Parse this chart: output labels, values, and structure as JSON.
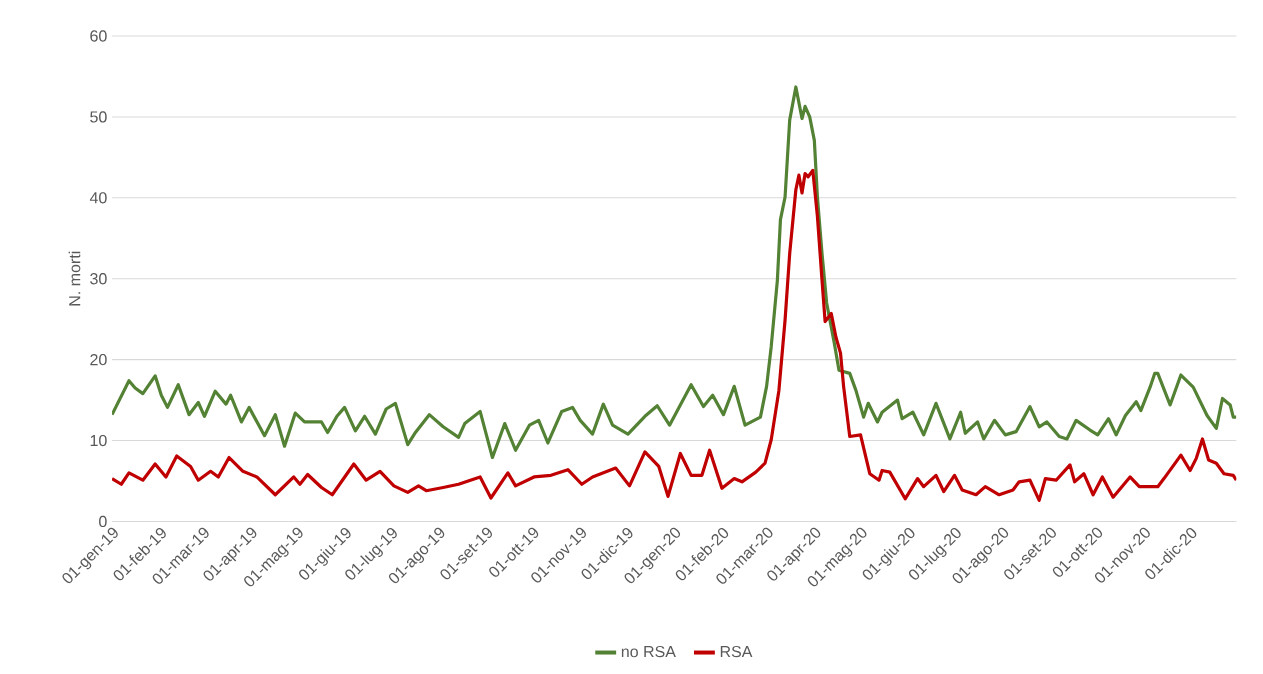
{
  "chart_data": {
    "type": "line",
    "ylabel": "N. morti",
    "xlim": [
      "2019-01-01",
      "2020-12-31"
    ],
    "xticks": [
      {
        "value": "2019-01-01",
        "label": "01-gen-19"
      },
      {
        "value": "2019-02-01",
        "label": "01-feb-19"
      },
      {
        "value": "2019-03-01",
        "label": "01-mar-19"
      },
      {
        "value": "2019-04-01",
        "label": "01-apr-19"
      },
      {
        "value": "2019-05-01",
        "label": "01-mag-19"
      },
      {
        "value": "2019-06-01",
        "label": "01-giu-19"
      },
      {
        "value": "2019-07-01",
        "label": "01-lug-19"
      },
      {
        "value": "2019-08-01",
        "label": "01-ago-19"
      },
      {
        "value": "2019-09-01",
        "label": "01-set-19"
      },
      {
        "value": "2019-10-01",
        "label": "01-ott-19"
      },
      {
        "value": "2019-11-01",
        "label": "01-nov-19"
      },
      {
        "value": "2019-12-01",
        "label": "01-dic-19"
      },
      {
        "value": "2020-01-01",
        "label": "01-gen-20"
      },
      {
        "value": "2020-02-01",
        "label": "01-feb-20"
      },
      {
        "value": "2020-03-01",
        "label": "01-mar-20"
      },
      {
        "value": "2020-04-01",
        "label": "01-apr-20"
      },
      {
        "value": "2020-05-01",
        "label": "01-mag-20"
      },
      {
        "value": "2020-06-01",
        "label": "01-giu-20"
      },
      {
        "value": "2020-07-01",
        "label": "01-lug-20"
      },
      {
        "value": "2020-08-01",
        "label": "01-ago-20"
      },
      {
        "value": "2020-09-01",
        "label": "01-set-20"
      },
      {
        "value": "2020-10-01",
        "label": "01-ott-20"
      },
      {
        "value": "2020-11-01",
        "label": "01-nov-20"
      },
      {
        "value": "2020-12-01",
        "label": "01-dic-20"
      }
    ],
    "ylim": [
      0,
      60
    ],
    "yticks": [
      0,
      10,
      20,
      30,
      40,
      50,
      60
    ],
    "grid": "y",
    "legend": "bottom",
    "marker": "none",
    "line_style": "solid",
    "series": [
      {
        "name": "no RSA",
        "color": "#548235",
        "x": [
          "2019-01-01",
          "2019-01-12",
          "2019-01-16",
          "2019-01-21",
          "2019-01-29",
          "2019-02-02",
          "2019-02-06",
          "2019-02-13",
          "2019-02-20",
          "2019-02-26",
          "2019-03-02",
          "2019-03-09",
          "2019-03-16",
          "2019-03-19",
          "2019-03-26",
          "2019-03-31",
          "2019-04-10",
          "2019-04-17",
          "2019-04-23",
          "2019-04-30",
          "2019-05-06",
          "2019-05-17",
          "2019-05-21",
          "2019-05-27",
          "2019-06-01",
          "2019-06-08",
          "2019-06-14",
          "2019-06-21",
          "2019-06-28",
          "2019-07-04",
          "2019-07-12",
          "2019-07-17",
          "2019-07-26",
          "2019-08-04",
          "2019-08-14",
          "2019-08-18",
          "2019-08-28",
          "2019-09-05",
          "2019-09-13",
          "2019-09-20",
          "2019-09-29",
          "2019-10-05",
          "2019-10-11",
          "2019-10-20",
          "2019-10-27",
          "2019-11-01",
          "2019-11-09",
          "2019-11-16",
          "2019-11-22",
          "2019-12-02",
          "2019-12-13",
          "2019-12-21",
          "2019-12-29",
          "2020-01-12",
          "2020-01-20",
          "2020-01-26",
          "2020-02-02",
          "2020-02-09",
          "2020-02-16",
          "2020-02-26",
          "2020-03-01",
          "2020-03-04",
          "2020-03-08",
          "2020-03-10",
          "2020-03-13",
          "2020-03-16",
          "2020-03-20",
          "2020-03-24",
          "2020-03-26",
          "2020-03-29",
          "2020-04-01",
          "2020-04-03",
          "2020-04-06",
          "2020-04-09",
          "2020-04-14",
          "2020-04-17",
          "2020-04-24",
          "2020-04-28",
          "2020-05-03",
          "2020-05-06",
          "2020-05-12",
          "2020-05-15",
          "2020-05-25",
          "2020-05-28",
          "2020-06-04",
          "2020-06-11",
          "2020-06-19",
          "2020-06-28",
          "2020-07-05",
          "2020-07-08",
          "2020-07-16",
          "2020-07-20",
          "2020-07-27",
          "2020-08-03",
          "2020-08-10",
          "2020-08-19",
          "2020-08-25",
          "2020-08-30",
          "2020-09-07",
          "2020-09-12",
          "2020-09-18",
          "2020-09-27",
          "2020-10-02",
          "2020-10-09",
          "2020-10-14",
          "2020-10-20",
          "2020-10-27",
          "2020-10-30",
          "2020-11-05",
          "2020-11-08",
          "2020-11-10",
          "2020-11-18",
          "2020-11-25",
          "2020-12-03",
          "2020-12-12",
          "2020-12-18",
          "2020-12-22",
          "2020-12-27",
          "2020-12-29",
          "2020-12-31"
        ],
        "values": [
          13.2,
          17.4,
          16.5,
          15.8,
          18.0,
          15.6,
          14.1,
          16.9,
          13.2,
          14.7,
          13.0,
          16.1,
          14.5,
          15.6,
          12.3,
          14.1,
          10.6,
          13.2,
          9.3,
          13.4,
          12.3,
          12.3,
          11.0,
          13.0,
          14.1,
          11.2,
          13.0,
          10.8,
          13.9,
          14.6,
          9.5,
          11.0,
          13.2,
          11.7,
          10.4,
          12.1,
          13.6,
          7.9,
          12.1,
          8.8,
          11.9,
          12.5,
          9.7,
          13.6,
          14.1,
          12.5,
          10.8,
          14.5,
          11.9,
          10.8,
          13.0,
          14.3,
          11.9,
          16.9,
          14.2,
          15.6,
          13.2,
          16.7,
          11.9,
          12.9,
          16.7,
          21.6,
          29.8,
          37.3,
          40.1,
          49.6,
          53.7,
          49.8,
          51.3,
          50.0,
          47.1,
          40.1,
          33.1,
          27.0,
          22.0,
          18.7,
          18.3,
          16.2,
          12.9,
          14.6,
          12.3,
          13.5,
          15.0,
          12.7,
          13.5,
          10.7,
          14.6,
          10.2,
          13.5,
          10.9,
          12.3,
          10.2,
          12.5,
          10.7,
          11.1,
          14.2,
          11.7,
          12.3,
          10.5,
          10.2,
          12.5,
          11.3,
          10.7,
          12.7,
          10.7,
          13.1,
          14.8,
          13.7,
          16.6,
          18.3,
          18.3,
          14.4,
          18.1,
          16.6,
          13.1,
          11.5,
          15.2,
          14.4,
          12.9,
          12.9
        ]
      },
      {
        "name": "RSA",
        "color": "#c00000",
        "x": [
          "2019-01-01",
          "2019-01-07",
          "2019-01-12",
          "2019-01-21",
          "2019-01-29",
          "2019-02-05",
          "2019-02-12",
          "2019-02-21",
          "2019-02-26",
          "2019-03-06",
          "2019-03-11",
          "2019-03-18",
          "2019-03-27",
          "2019-04-05",
          "2019-04-17",
          "2019-04-29",
          "2019-05-03",
          "2019-05-08",
          "2019-05-17",
          "2019-05-24",
          "2019-06-07",
          "2019-06-15",
          "2019-06-24",
          "2019-07-03",
          "2019-07-12",
          "2019-07-19",
          "2019-07-24",
          "2019-08-04",
          "2019-08-14",
          "2019-08-28",
          "2019-09-04",
          "2019-09-15",
          "2019-09-20",
          "2019-10-02",
          "2019-10-13",
          "2019-10-24",
          "2019-11-02",
          "2019-11-09",
          "2019-11-24",
          "2019-12-03",
          "2019-12-13",
          "2019-12-22",
          "2019-12-28",
          "2020-01-05",
          "2020-01-12",
          "2020-01-19",
          "2020-01-24",
          "2020-02-01",
          "2020-02-09",
          "2020-02-14",
          "2020-02-23",
          "2020-02-29",
          "2020-03-04",
          "2020-03-09",
          "2020-03-13",
          "2020-03-16",
          "2020-03-20",
          "2020-03-22",
          "2020-03-24",
          "2020-03-26",
          "2020-03-28",
          "2020-03-31",
          "2020-04-03",
          "2020-04-06",
          "2020-04-08",
          "2020-04-12",
          "2020-04-15",
          "2020-04-18",
          "2020-04-20",
          "2020-04-24",
          "2020-05-01",
          "2020-05-07",
          "2020-05-13",
          "2020-05-15",
          "2020-05-20",
          "2020-05-30",
          "2020-06-07",
          "2020-06-11",
          "2020-06-19",
          "2020-06-24",
          "2020-07-01",
          "2020-07-06",
          "2020-07-15",
          "2020-07-21",
          "2020-07-30",
          "2020-08-08",
          "2020-08-12",
          "2020-08-19",
          "2020-08-25",
          "2020-08-29",
          "2020-09-05",
          "2020-09-14",
          "2020-09-17",
          "2020-09-23",
          "2020-09-29",
          "2020-10-05",
          "2020-10-12",
          "2020-10-23",
          "2020-10-29",
          "2020-11-10",
          "2020-11-14",
          "2020-11-22",
          "2020-11-25",
          "2020-12-01",
          "2020-12-05",
          "2020-12-09",
          "2020-12-13",
          "2020-12-18",
          "2020-12-23",
          "2020-12-29",
          "2020-12-31"
        ],
        "values": [
          5.3,
          4.6,
          6.0,
          5.1,
          7.1,
          5.5,
          8.1,
          6.8,
          5.1,
          6.2,
          5.5,
          7.9,
          6.2,
          5.5,
          3.3,
          5.5,
          4.6,
          5.8,
          4.2,
          3.3,
          7.1,
          5.1,
          6.2,
          4.4,
          3.6,
          4.4,
          3.8,
          4.2,
          4.6,
          5.5,
          2.9,
          6.0,
          4.4,
          5.5,
          5.7,
          6.4,
          4.6,
          5.5,
          6.6,
          4.4,
          8.6,
          6.8,
          3.1,
          8.4,
          5.7,
          5.7,
          8.8,
          4.1,
          5.3,
          4.9,
          6.1,
          7.2,
          10.1,
          16.2,
          24.9,
          33.1,
          41.0,
          42.8,
          40.6,
          43.0,
          42.6,
          43.4,
          37.7,
          29.8,
          24.7,
          25.7,
          22.8,
          20.8,
          16.7,
          10.5,
          10.7,
          5.9,
          5.1,
          6.3,
          6.1,
          2.8,
          5.3,
          4.3,
          5.7,
          3.7,
          5.7,
          3.9,
          3.3,
          4.3,
          3.3,
          3.9,
          4.9,
          5.1,
          2.6,
          5.3,
          5.1,
          7.0,
          4.9,
          5.9,
          3.3,
          5.5,
          3.0,
          5.5,
          4.3,
          4.3,
          5.3,
          7.4,
          8.2,
          6.3,
          7.8,
          10.2,
          7.6,
          7.2,
          5.9,
          5.7,
          5.1
        ]
      }
    ]
  }
}
